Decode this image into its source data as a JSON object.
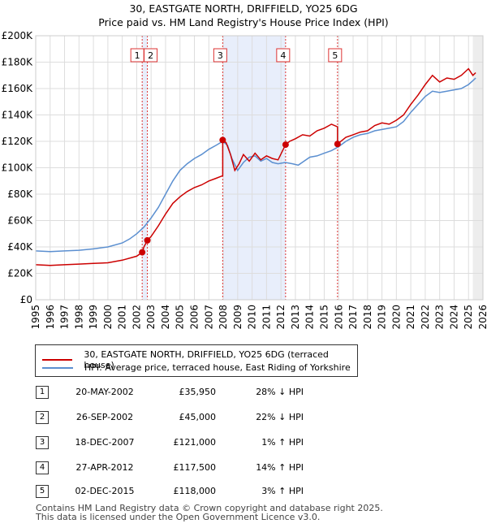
{
  "title_line1": "30, EASTGATE NORTH, DRIFFIELD, YO25 6DG",
  "title_line2": "Price paid vs. HM Land Registry's House Price Index (HPI)",
  "chart_data": {
    "type": "line",
    "xlim": [
      1995,
      2026
    ],
    "ylim": [
      0,
      200000
    ],
    "y_ticks": [
      {
        "value": 0,
        "label": "£0"
      },
      {
        "value": 20000,
        "label": "£20K"
      },
      {
        "value": 40000,
        "label": "£40K"
      },
      {
        "value": 60000,
        "label": "£60K"
      },
      {
        "value": 80000,
        "label": "£80K"
      },
      {
        "value": 100000,
        "label": "£100K"
      },
      {
        "value": 120000,
        "label": "£120K"
      },
      {
        "value": 140000,
        "label": "£140K"
      },
      {
        "value": 160000,
        "label": "£160K"
      },
      {
        "value": 180000,
        "label": "£180K"
      },
      {
        "value": 200000,
        "label": "£200K"
      }
    ],
    "x_ticks": [
      "1995",
      "1996",
      "1997",
      "1998",
      "1999",
      "2000",
      "2001",
      "2002",
      "2003",
      "2004",
      "2005",
      "2006",
      "2007",
      "2008",
      "2009",
      "2010",
      "2011",
      "2012",
      "2013",
      "2014",
      "2015",
      "2016",
      "2017",
      "2018",
      "2019",
      "2020",
      "2021",
      "2022",
      "2023",
      "2024",
      "2025",
      "2026"
    ],
    "series": [
      {
        "name": "30, EASTGATE NORTH, DRIFFIELD, YO25 6DG (terraced house)",
        "color": "#cc0000",
        "x": [
          1995.0,
          1996.0,
          1997.0,
          1998.0,
          1999.0,
          2000.0,
          2001.0,
          2002.0,
          2002.38,
          2002.38,
          2002.5,
          2002.74,
          2002.74,
          2003.0,
          2003.5,
          2004.0,
          2004.5,
          2005.0,
          2005.5,
          2006.0,
          2006.5,
          2007.0,
          2007.5,
          2007.96,
          2007.96,
          2008.2,
          2008.5,
          2008.8,
          2009.1,
          2009.4,
          2009.8,
          2010.2,
          2010.6,
          2011.0,
          2011.4,
          2011.8,
          2012.32,
          2012.32,
          2012.6,
          2013.0,
          2013.5,
          2014.0,
          2014.5,
          2015.0,
          2015.5,
          2015.92,
          2015.92,
          2016.5,
          2017.0,
          2017.5,
          2018.0,
          2018.5,
          2019.0,
          2019.5,
          2020.0,
          2020.5,
          2021.0,
          2021.5,
          2022.0,
          2022.5,
          2023.0,
          2023.5,
          2024.0,
          2024.5,
          2025.0,
          2025.3,
          2025.5
        ],
        "y": [
          26500,
          26000,
          26500,
          27000,
          27500,
          28000,
          30000,
          33000,
          35950,
          35950,
          40000,
          45000,
          45000,
          48000,
          56000,
          65000,
          73000,
          78000,
          82000,
          85000,
          87000,
          90000,
          92000,
          94000,
          121000,
          119000,
          110000,
          98000,
          103000,
          110000,
          105000,
          111000,
          106000,
          109000,
          107000,
          106000,
          117500,
          117500,
          120000,
          122000,
          125000,
          124000,
          128000,
          130000,
          133000,
          131000,
          118000,
          123000,
          125000,
          127000,
          128000,
          132000,
          134000,
          133000,
          136000,
          140000,
          148000,
          155000,
          163000,
          170000,
          165000,
          168000,
          167000,
          170000,
          175000,
          170000,
          172000
        ]
      },
      {
        "name": "HPI: Average price, terraced house, East Riding of Yorkshire",
        "color": "#5b8fd0",
        "x": [
          1995.0,
          1996.0,
          1997.0,
          1998.0,
          1999.0,
          2000.0,
          2001.0,
          2001.5,
          2002.0,
          2002.5,
          2003.0,
          2003.5,
          2004.0,
          2004.5,
          2005.0,
          2005.5,
          2006.0,
          2006.5,
          2007.0,
          2007.5,
          2007.96,
          2008.3,
          2008.6,
          2009.0,
          2009.4,
          2009.8,
          2010.2,
          2010.6,
          2011.0,
          2011.4,
          2011.8,
          2012.3,
          2012.8,
          2013.2,
          2013.6,
          2014.0,
          2014.5,
          2015.0,
          2015.5,
          2016.0,
          2016.5,
          2017.0,
          2017.5,
          2018.0,
          2018.5,
          2019.0,
          2019.5,
          2020.0,
          2020.5,
          2021.0,
          2021.5,
          2022.0,
          2022.5,
          2023.0,
          2023.5,
          2024.0,
          2024.5,
          2025.0,
          2025.3,
          2025.5
        ],
        "y": [
          37000,
          36500,
          37000,
          37500,
          38500,
          40000,
          43000,
          46000,
          50000,
          55000,
          62000,
          70000,
          80000,
          90000,
          98000,
          103000,
          107000,
          110000,
          114000,
          117000,
          120000,
          117000,
          107000,
          98000,
          104000,
          108000,
          109000,
          105000,
          107000,
          104000,
          103000,
          104000,
          103000,
          102000,
          105000,
          108000,
          109000,
          111000,
          113000,
          116000,
          120000,
          123000,
          125000,
          126000,
          128000,
          129000,
          130000,
          131000,
          135000,
          142000,
          148000,
          154000,
          158000,
          157000,
          158000,
          159000,
          160000,
          163000,
          166000,
          168000
        ]
      }
    ],
    "transactions": [
      {
        "num": "1",
        "x": 2002.38,
        "price": 35950
      },
      {
        "num": "2",
        "x": 2002.74,
        "price": 45000
      },
      {
        "num": "3",
        "x": 2007.96,
        "price": 121000
      },
      {
        "num": "4",
        "x": 2012.32,
        "price": 117500
      },
      {
        "num": "5",
        "x": 2015.92,
        "price": 118000
      }
    ],
    "shaded_ranges": [
      [
        2002.38,
        2002.74
      ],
      [
        2007.96,
        2012.32
      ],
      [
        2025.3,
        2026.0
      ]
    ]
  },
  "legend": {
    "items": [
      {
        "label": "30, EASTGATE NORTH, DRIFFIELD, YO25 6DG (terraced house)",
        "color": "#cc0000"
      },
      {
        "label": "HPI: Average price, terraced house, East Riding of Yorkshire",
        "color": "#5b8fd0"
      }
    ]
  },
  "table": [
    {
      "num": "1",
      "date": "20-MAY-2002",
      "price": "£35,950",
      "hpi": "28% ↓ HPI"
    },
    {
      "num": "2",
      "date": "26-SEP-2002",
      "price": "£45,000",
      "hpi": "22% ↓ HPI"
    },
    {
      "num": "3",
      "date": "18-DEC-2007",
      "price": "£121,000",
      "hpi": "1% ↑ HPI"
    },
    {
      "num": "4",
      "date": "27-APR-2012",
      "price": "£117,500",
      "hpi": "14% ↑ HPI"
    },
    {
      "num": "5",
      "date": "02-DEC-2015",
      "price": "£118,000",
      "hpi": "3% ↑ HPI"
    }
  ],
  "footer": {
    "line1": "Contains HM Land Registry data © Crown copyright and database right 2025.",
    "line2": "This data is licensed under the Open Government Licence v3.0."
  }
}
